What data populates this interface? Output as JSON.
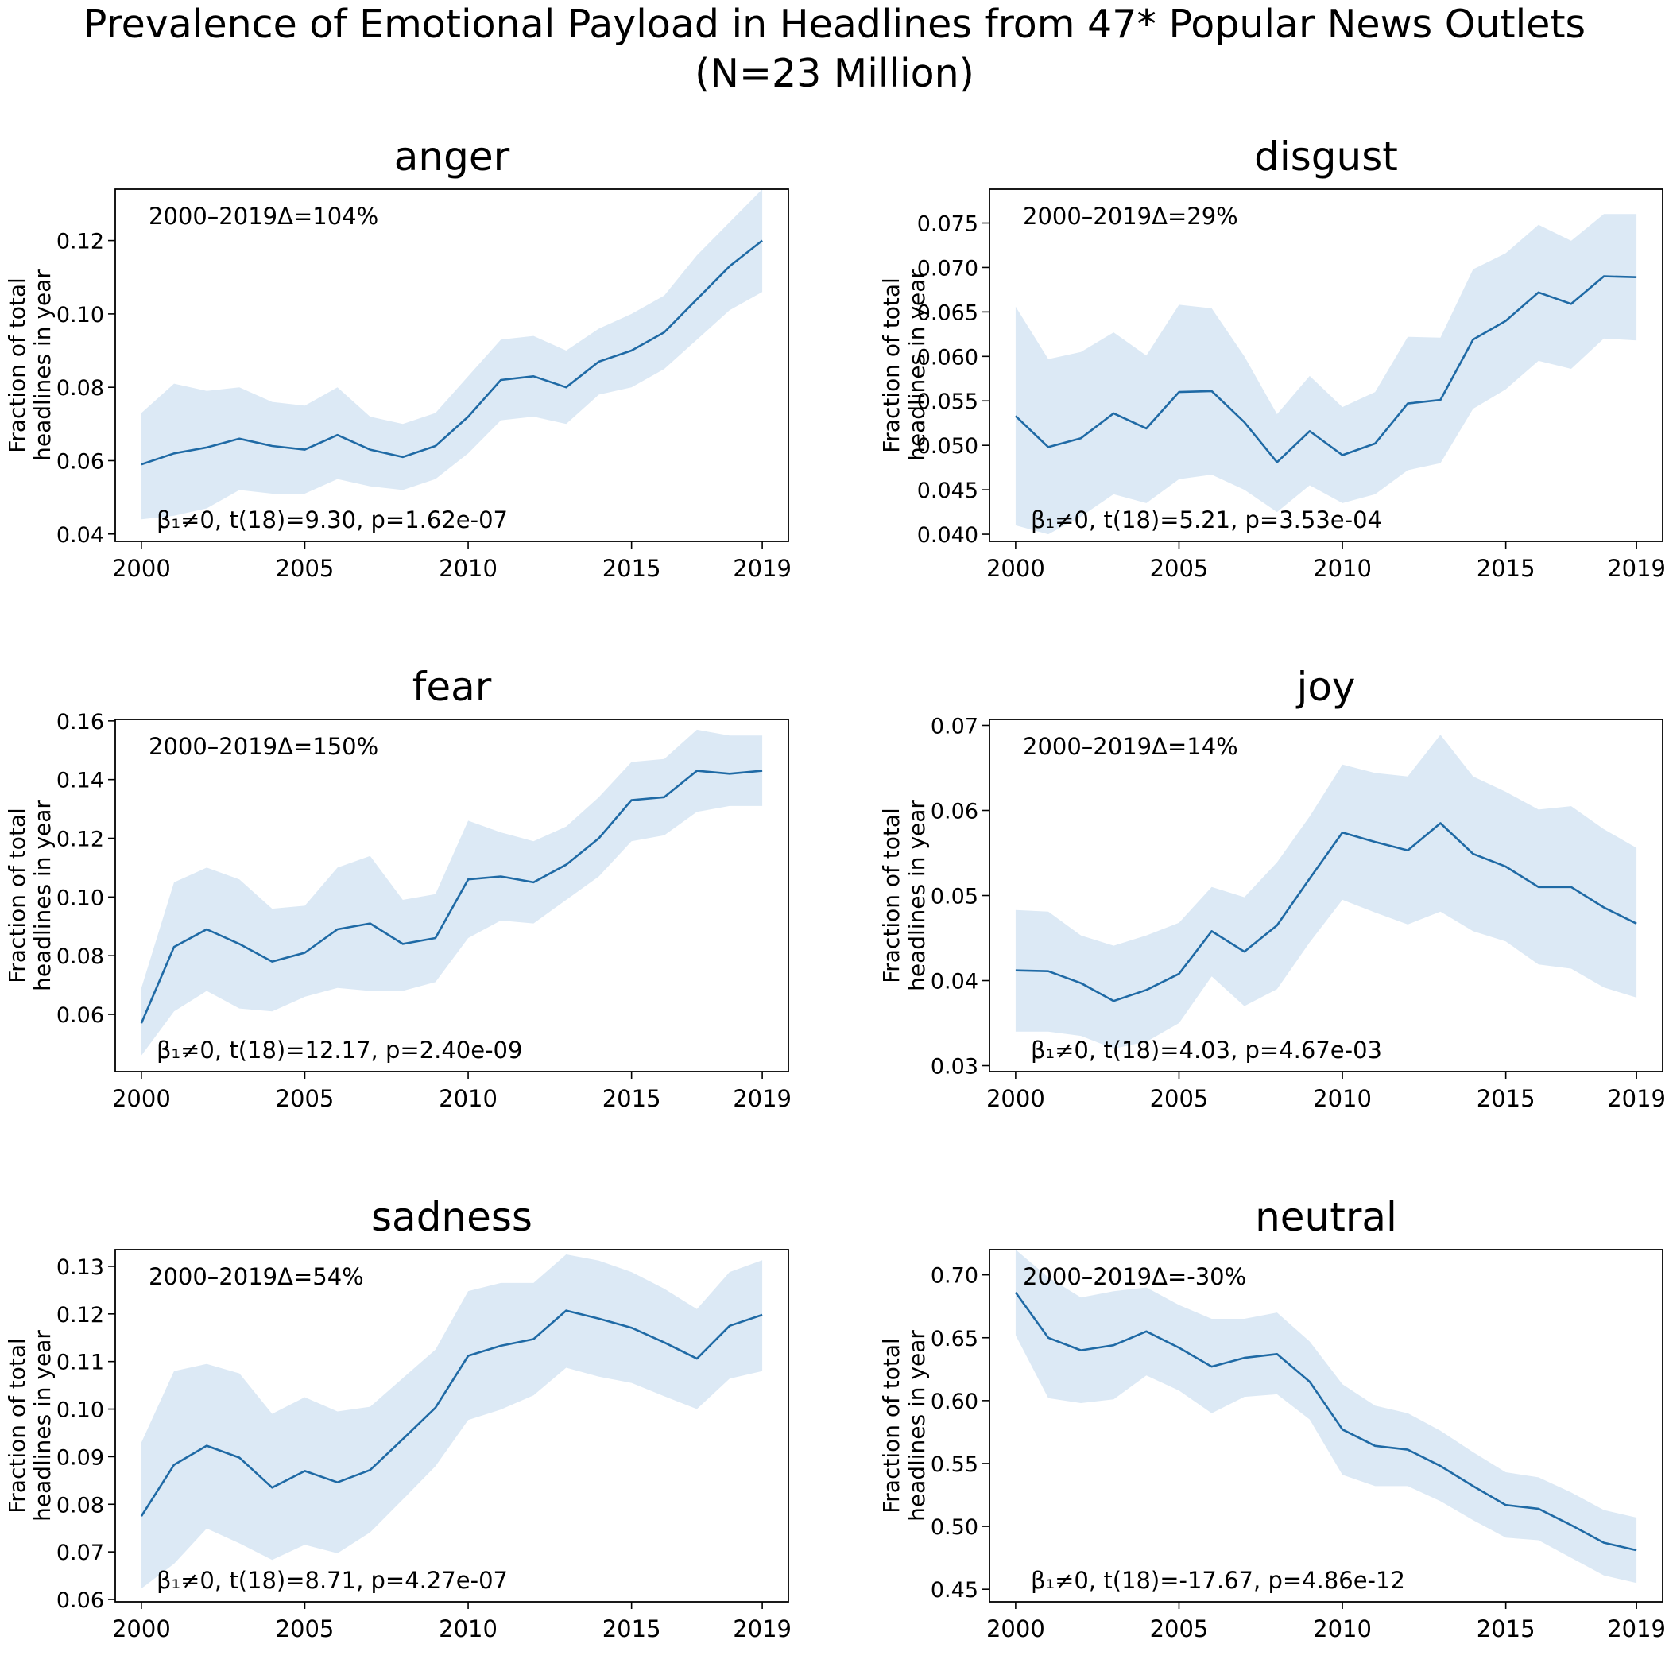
{
  "figure": {
    "title_line1": "Prevalence of Emotional Payload in Headlines from 47* Popular News Outlets",
    "title_line2": "(N=23 Million)"
  },
  "colors": {
    "line": "#1f6aa5",
    "band": "#dce9f5",
    "axis": "#000000"
  },
  "chart_data": [
    {
      "type": "line",
      "title": "anger",
      "ylabel": "Fraction of total headlines in year",
      "ylim": [
        0.038,
        0.134
      ],
      "xlim": [
        1999.2,
        2019.8
      ],
      "xticks": [
        2000,
        2005,
        2010,
        2015,
        2019
      ],
      "yticks": [
        0.04,
        0.06,
        0.08,
        0.1,
        0.12
      ],
      "ytick_labels": [
        "0.04",
        "0.06",
        "0.08",
        "0.10",
        "0.12"
      ],
      "annotation_top": "2000–2019Δ=104%",
      "annotation_bottom": "β₁≠0, t(18)=9.30, p=1.62e-07",
      "x": [
        2000,
        2001,
        2002,
        2003,
        2004,
        2005,
        2006,
        2007,
        2008,
        2009,
        2010,
        2011,
        2012,
        2013,
        2014,
        2015,
        2016,
        2017,
        2018,
        2019
      ],
      "values": [
        0.059,
        0.062,
        0.0636,
        0.066,
        0.064,
        0.063,
        0.067,
        0.063,
        0.061,
        0.064,
        0.072,
        0.082,
        0.083,
        0.08,
        0.087,
        0.09,
        0.095,
        0.104,
        0.113,
        0.12
      ],
      "lower": [
        0.044,
        0.045,
        0.047,
        0.052,
        0.051,
        0.051,
        0.055,
        0.053,
        0.052,
        0.055,
        0.062,
        0.071,
        0.072,
        0.07,
        0.078,
        0.08,
        0.085,
        0.093,
        0.101,
        0.106
      ],
      "upper": [
        0.073,
        0.081,
        0.079,
        0.08,
        0.076,
        0.075,
        0.08,
        0.072,
        0.07,
        0.073,
        0.083,
        0.093,
        0.094,
        0.09,
        0.096,
        0.1,
        0.105,
        0.116,
        0.125,
        0.134
      ]
    },
    {
      "type": "line",
      "title": "disgust",
      "ylabel": "Fraction of total headlines in year",
      "ylim": [
        0.0392,
        0.0788
      ],
      "xlim": [
        1999.2,
        2019.8
      ],
      "xticks": [
        2000,
        2005,
        2010,
        2015,
        2019
      ],
      "yticks": [
        0.04,
        0.045,
        0.05,
        0.055,
        0.06,
        0.065,
        0.07,
        0.075
      ],
      "ytick_labels": [
        "0.040",
        "0.045",
        "0.050",
        "0.055",
        "0.060",
        "0.065",
        "0.070",
        "0.075"
      ],
      "annotation_top": "2000–2019Δ=29%",
      "annotation_bottom": "β₁≠0, t(18)=5.21, p=3.53e-04",
      "x": [
        2000,
        2001,
        2002,
        2003,
        2004,
        2005,
        2006,
        2007,
        2008,
        2009,
        2010,
        2011,
        2012,
        2013,
        2014,
        2015,
        2016,
        2017,
        2018,
        2019
      ],
      "values": [
        0.0533,
        0.0498,
        0.0508,
        0.0536,
        0.0519,
        0.056,
        0.0561,
        0.0526,
        0.0481,
        0.0516,
        0.0489,
        0.0502,
        0.0547,
        0.0551,
        0.0619,
        0.064,
        0.0672,
        0.0659,
        0.069,
        0.0689
      ],
      "lower": [
        0.041,
        0.04,
        0.042,
        0.0445,
        0.0435,
        0.0462,
        0.0467,
        0.045,
        0.0425,
        0.0455,
        0.0435,
        0.0445,
        0.0472,
        0.048,
        0.0541,
        0.0563,
        0.0595,
        0.0586,
        0.062,
        0.0618
      ],
      "upper": [
        0.0656,
        0.0597,
        0.0605,
        0.0627,
        0.0601,
        0.0658,
        0.0654,
        0.06,
        0.0535,
        0.0578,
        0.0543,
        0.056,
        0.0622,
        0.0621,
        0.0698,
        0.0716,
        0.0748,
        0.073,
        0.076,
        0.076
      ]
    },
    {
      "type": "line",
      "title": "fear",
      "ylabel": "Fraction of total headlines in year",
      "ylim": [
        0.0405,
        0.1605
      ],
      "xlim": [
        1999.2,
        2019.8
      ],
      "xticks": [
        2000,
        2005,
        2010,
        2015,
        2019
      ],
      "yticks": [
        0.06,
        0.08,
        0.1,
        0.12,
        0.14,
        0.16
      ],
      "ytick_labels": [
        "0.06",
        "0.08",
        "0.10",
        "0.12",
        "0.14",
        "0.16"
      ],
      "annotation_top": "2000–2019Δ=150%",
      "annotation_bottom": "β₁≠0, t(18)=12.17, p=2.40e-09",
      "x": [
        2000,
        2001,
        2002,
        2003,
        2004,
        2005,
        2006,
        2007,
        2008,
        2009,
        2010,
        2011,
        2012,
        2013,
        2014,
        2015,
        2016,
        2017,
        2018,
        2019
      ],
      "values": [
        0.057,
        0.083,
        0.089,
        0.084,
        0.078,
        0.081,
        0.089,
        0.091,
        0.084,
        0.086,
        0.106,
        0.107,
        0.105,
        0.111,
        0.12,
        0.133,
        0.134,
        0.143,
        0.142,
        0.143
      ],
      "lower": [
        0.046,
        0.061,
        0.068,
        0.062,
        0.061,
        0.066,
        0.069,
        0.068,
        0.068,
        0.071,
        0.086,
        0.092,
        0.091,
        0.099,
        0.107,
        0.119,
        0.121,
        0.129,
        0.131,
        0.131
      ],
      "upper": [
        0.069,
        0.105,
        0.11,
        0.106,
        0.096,
        0.097,
        0.11,
        0.114,
        0.099,
        0.101,
        0.126,
        0.122,
        0.119,
        0.124,
        0.134,
        0.146,
        0.147,
        0.157,
        0.155,
        0.155
      ]
    },
    {
      "type": "line",
      "title": "joy",
      "ylabel": "Fraction of total headlines in year",
      "ylim": [
        0.0293,
        0.0707
      ],
      "xlim": [
        1999.2,
        2019.8
      ],
      "xticks": [
        2000,
        2005,
        2010,
        2015,
        2019
      ],
      "yticks": [
        0.03,
        0.04,
        0.05,
        0.06,
        0.07
      ],
      "ytick_labels": [
        "0.03",
        "0.04",
        "0.05",
        "0.06",
        "0.07"
      ],
      "annotation_top": "2000–2019Δ=14%",
      "annotation_bottom": "β₁≠0, t(18)=4.03, p=4.67e-03",
      "x": [
        2000,
        2001,
        2002,
        2003,
        2004,
        2005,
        2006,
        2007,
        2008,
        2009,
        2010,
        2011,
        2012,
        2013,
        2014,
        2015,
        2016,
        2017,
        2018,
        2019
      ],
      "values": [
        0.0412,
        0.0411,
        0.0397,
        0.0376,
        0.0389,
        0.0408,
        0.0458,
        0.0434,
        0.0465,
        0.052,
        0.0574,
        0.0563,
        0.0553,
        0.0585,
        0.0549,
        0.0534,
        0.051,
        0.051,
        0.0486,
        0.0467
      ],
      "lower": [
        0.034,
        0.034,
        0.0335,
        0.032,
        0.0328,
        0.035,
        0.0405,
        0.037,
        0.039,
        0.0445,
        0.0495,
        0.048,
        0.0466,
        0.0481,
        0.0458,
        0.0446,
        0.0419,
        0.0414,
        0.0392,
        0.038
      ],
      "upper": [
        0.0483,
        0.0481,
        0.0453,
        0.0441,
        0.0453,
        0.0468,
        0.051,
        0.0498,
        0.0539,
        0.0593,
        0.0654,
        0.0644,
        0.064,
        0.0689,
        0.064,
        0.0622,
        0.0601,
        0.0605,
        0.0578,
        0.0556
      ]
    },
    {
      "type": "line",
      "title": "sadness",
      "ylabel": "Fraction of total headlines in year",
      "ylim": [
        0.0595,
        0.1335
      ],
      "xlim": [
        1999.2,
        2019.8
      ],
      "xticks": [
        2000,
        2005,
        2010,
        2015,
        2019
      ],
      "yticks": [
        0.06,
        0.07,
        0.08,
        0.09,
        0.1,
        0.11,
        0.12,
        0.13
      ],
      "ytick_labels": [
        "0.06",
        "0.07",
        "0.08",
        "0.09",
        "0.10",
        "0.11",
        "0.12",
        "0.13"
      ],
      "annotation_top": "2000–2019Δ=54%",
      "annotation_bottom": "β₁≠0, t(18)=8.71, p=4.27e-07",
      "x": [
        2000,
        2001,
        2002,
        2003,
        2004,
        2005,
        2006,
        2007,
        2008,
        2009,
        2010,
        2011,
        2012,
        2013,
        2014,
        2015,
        2016,
        2017,
        2018,
        2019
      ],
      "values": [
        0.0775,
        0.0883,
        0.0923,
        0.0898,
        0.0835,
        0.087,
        0.0846,
        0.0872,
        0.0937,
        0.1003,
        0.1112,
        0.1133,
        0.1147,
        0.1207,
        0.119,
        0.1171,
        0.114,
        0.1106,
        0.1175,
        0.1198
      ],
      "lower": [
        0.0623,
        0.0675,
        0.0749,
        0.0718,
        0.0683,
        0.0715,
        0.0697,
        0.0741,
        0.081,
        0.088,
        0.0977,
        0.0999,
        0.1029,
        0.1087,
        0.1068,
        0.1055,
        0.1027,
        0.1,
        0.1064,
        0.108
      ],
      "upper": [
        0.093,
        0.108,
        0.1095,
        0.1075,
        0.099,
        0.1025,
        0.0995,
        0.1005,
        0.1065,
        0.1125,
        0.1248,
        0.1265,
        0.1265,
        0.1325,
        0.1312,
        0.1288,
        0.1253,
        0.121,
        0.1288,
        0.1313
      ]
    },
    {
      "type": "line",
      "title": "neutral",
      "ylabel": "Fraction of total headlines in year",
      "ylim": [
        0.44,
        0.72
      ],
      "xlim": [
        1999.2,
        2019.8
      ],
      "xticks": [
        2000,
        2005,
        2010,
        2015,
        2019
      ],
      "yticks": [
        0.45,
        0.5,
        0.55,
        0.6,
        0.65,
        0.7
      ],
      "ytick_labels": [
        "0.45",
        "0.50",
        "0.55",
        "0.60",
        "0.65",
        "0.70"
      ],
      "annotation_top": "2000–2019Δ=-30%",
      "annotation_bottom": "β₁≠0, t(18)=-17.67, p=4.86e-12",
      "x": [
        2000,
        2001,
        2002,
        2003,
        2004,
        2005,
        2006,
        2007,
        2008,
        2009,
        2010,
        2011,
        2012,
        2013,
        2014,
        2015,
        2016,
        2017,
        2018,
        2019
      ],
      "values": [
        0.686,
        0.65,
        0.64,
        0.644,
        0.655,
        0.642,
        0.627,
        0.634,
        0.637,
        0.615,
        0.577,
        0.564,
        0.561,
        0.548,
        0.532,
        0.517,
        0.514,
        0.501,
        0.487,
        0.481
      ],
      "lower": [
        0.652,
        0.602,
        0.598,
        0.601,
        0.62,
        0.608,
        0.59,
        0.603,
        0.605,
        0.585,
        0.541,
        0.532,
        0.532,
        0.52,
        0.505,
        0.491,
        0.489,
        0.475,
        0.461,
        0.455
      ],
      "upper": [
        0.72,
        0.698,
        0.682,
        0.687,
        0.69,
        0.676,
        0.665,
        0.665,
        0.67,
        0.647,
        0.613,
        0.596,
        0.59,
        0.576,
        0.559,
        0.543,
        0.539,
        0.527,
        0.513,
        0.507
      ]
    }
  ]
}
